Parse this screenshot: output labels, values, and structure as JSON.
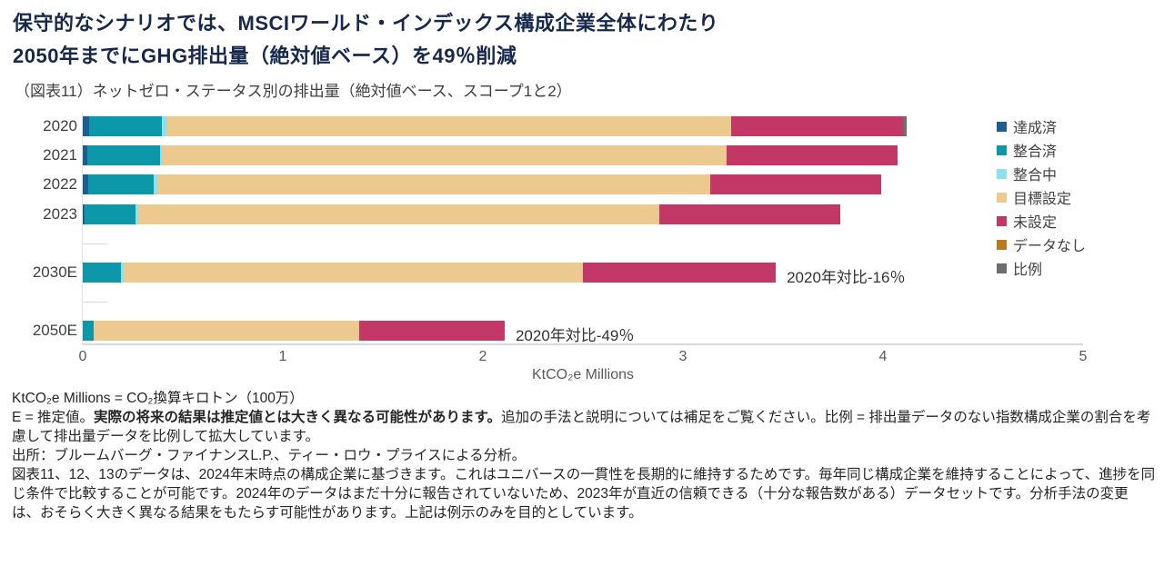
{
  "header": {
    "title_line1": "保守的なシナリオでは、MSCIワールド・インデックス構成企業全体にわたり",
    "title_line2": "2050年までにGHG排出量（絶対値ベース）を49％削減",
    "subtitle": "（図表11）ネットゼロ・ステータス別の排出量（絶対値ベース、スコープ1と2）"
  },
  "chart_data": {
    "type": "bar",
    "orientation": "horizontal",
    "stacked": true,
    "title": "（図表11）ネットゼロ・ステータス別の排出量（絶対値ベース、スコープ1と2）",
    "xlabel": "KtCO₂e Millions",
    "ylabel": "",
    "xlim": [
      0,
      5
    ],
    "xticks": [
      "0",
      "1",
      "2",
      "3",
      "4",
      "5"
    ],
    "grid": false,
    "legend_position": "right",
    "categories": [
      "2020",
      "2021",
      "2022",
      "2023",
      "",
      "2030E",
      "",
      "2050E"
    ],
    "series": [
      {
        "name": "達成済",
        "color": "#1e5c94",
        "values": [
          0.032,
          0.023,
          0.027,
          0.009,
          0,
          0,
          0,
          0
        ]
      },
      {
        "name": "整合済",
        "color": "#0d98a9",
        "values": [
          0.363,
          0.363,
          0.327,
          0.255,
          0,
          0.191,
          0,
          0.053
        ]
      },
      {
        "name": "整合中",
        "color": "#8ce1ef",
        "values": [
          0.023,
          0.009,
          0.018,
          0.014,
          0,
          0.014,
          0,
          0
        ]
      },
      {
        "name": "目標設定",
        "color": "#ecc98f",
        "values": [
          2.823,
          2.823,
          2.764,
          2.604,
          0,
          2.295,
          0,
          1.329
        ]
      },
      {
        "name": "未設定",
        "color": "#c23766",
        "values": [
          0.859,
          0.855,
          0.855,
          0.905,
          0,
          0.964,
          0,
          0.727
        ]
      },
      {
        "name": "データなし",
        "color": "#b8791f",
        "values": [
          0,
          0,
          0,
          0,
          0,
          0,
          0,
          0
        ]
      },
      {
        "name": "比例",
        "color": "#6e6e6e",
        "values": [
          0.018,
          0,
          0,
          0,
          0,
          0,
          0,
          0
        ]
      }
    ],
    "totals_by_category": {
      "2020": 4.12,
      "2021": 4.07,
      "2022": 4.0,
      "2023": 3.79,
      "2030E": 3.46,
      "2050E": 2.11
    },
    "annotations": [
      {
        "category": "2030E",
        "text": "2020年対比-16％"
      },
      {
        "category": "2050E",
        "text": "2020年対比-49％"
      }
    ]
  },
  "footnotes": {
    "line1": "KtCO₂e Millions = CO₂換算キロトン（100万）",
    "e_prefix": "E = 推定値。",
    "e_bold": "実際の将来の結果は推定値とは大きく異なる可能性があります。",
    "e_rest": "追加の手法と説明については補足をご覧ください。比例 = 排出量データのない指数構成企業の割合を考慮して排出量データを比例して拡大しています。",
    "source": "出所：ブルームバーグ・ファイナンスL.P.、ティー・ロウ・プライスによる分析。",
    "method": "図表11、12、13のデータは、2024年末時点の構成企業に基づきます。これはユニバースの一貫性を長期的に維持するためです。毎年同じ構成企業を維持することによって、進捗を同じ条件で比較することが可能です。2024年のデータはまだ十分に報告されていないため、2023年が直近の信頼できる（十分な報告数がある）データセットです。分析手法の変更は、おそらく大きく異なる結果をもたらす可能性があります。上記は例示のみを目的としています。"
  }
}
